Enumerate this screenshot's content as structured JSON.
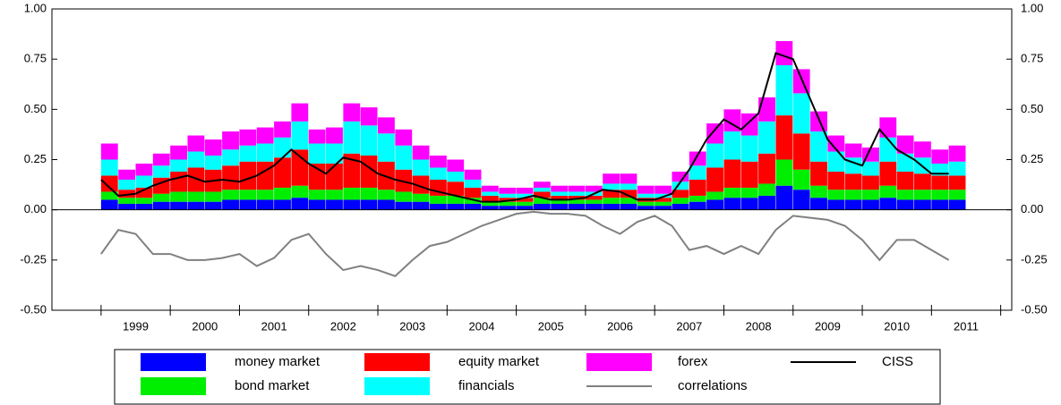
{
  "chart_data": {
    "type": "bar",
    "stacked": true,
    "legend": "bottom",
    "xlim": [
      1998.29,
      2012.16
    ],
    "ylim": [
      -0.5,
      1.0
    ],
    "yticks": [
      {
        "value": 1.0,
        "label": "1.00"
      },
      {
        "value": 0.75,
        "label": "0.75"
      },
      {
        "value": 0.5,
        "label": "0.50"
      },
      {
        "value": 0.25,
        "label": "0.25"
      },
      {
        "value": 0.0,
        "label": "0.00"
      },
      {
        "value": -0.25,
        "label": "-0.25"
      },
      {
        "value": -0.5,
        "label": "-0.50"
      }
    ],
    "xtick_marks": [
      1999,
      2000,
      2001,
      2002,
      2003,
      2004,
      2005,
      2006,
      2007,
      2008,
      2009,
      2010,
      2011,
      2012
    ],
    "xticks": [
      {
        "value": 1999.5,
        "label": "1999"
      },
      {
        "value": 2000.5,
        "label": "2000"
      },
      {
        "value": 2001.5,
        "label": "2001"
      },
      {
        "value": 2002.5,
        "label": "2002"
      },
      {
        "value": 2003.5,
        "label": "2003"
      },
      {
        "value": 2004.5,
        "label": "2004"
      },
      {
        "value": 2005.5,
        "label": "2005"
      },
      {
        "value": 2006.5,
        "label": "2006"
      },
      {
        "value": 2007.5,
        "label": "2007"
      },
      {
        "value": 2008.5,
        "label": "2008"
      },
      {
        "value": 2009.5,
        "label": "2009"
      },
      {
        "value": 2010.5,
        "label": "2010"
      },
      {
        "value": 2011.5,
        "label": "2011"
      }
    ],
    "x": [
      1999.0,
      1999.25,
      1999.5,
      1999.75,
      2000.0,
      2000.25,
      2000.5,
      2000.75,
      2001.0,
      2001.25,
      2001.5,
      2001.75,
      2002.0,
      2002.25,
      2002.5,
      2002.75,
      2003.0,
      2003.25,
      2003.5,
      2003.75,
      2004.0,
      2004.25,
      2004.5,
      2004.75,
      2005.0,
      2005.25,
      2005.5,
      2005.75,
      2006.0,
      2006.25,
      2006.5,
      2006.75,
      2007.0,
      2007.25,
      2007.5,
      2007.75,
      2008.0,
      2008.25,
      2008.5,
      2008.75,
      2009.0,
      2009.25,
      2009.5,
      2009.75,
      2010.0,
      2010.25,
      2010.5,
      2010.75,
      2011.0,
      2011.25
    ],
    "series": [
      {
        "name": "money market",
        "type": "bar",
        "color": "#0000ff",
        "values": [
          0.05,
          0.03,
          0.03,
          0.04,
          0.04,
          0.04,
          0.04,
          0.05,
          0.05,
          0.05,
          0.05,
          0.06,
          0.05,
          0.05,
          0.05,
          0.05,
          0.05,
          0.04,
          0.04,
          0.03,
          0.03,
          0.03,
          0.02,
          0.02,
          0.02,
          0.03,
          0.03,
          0.03,
          0.03,
          0.03,
          0.03,
          0.02,
          0.02,
          0.03,
          0.04,
          0.05,
          0.06,
          0.06,
          0.07,
          0.12,
          0.1,
          0.06,
          0.05,
          0.05,
          0.05,
          0.06,
          0.05,
          0.05,
          0.05,
          0.05
        ]
      },
      {
        "name": "bond market",
        "type": "bar",
        "color": "#00ee00",
        "values": [
          0.04,
          0.03,
          0.03,
          0.04,
          0.05,
          0.05,
          0.05,
          0.05,
          0.05,
          0.05,
          0.06,
          0.06,
          0.05,
          0.05,
          0.06,
          0.06,
          0.05,
          0.05,
          0.04,
          0.04,
          0.04,
          0.03,
          0.02,
          0.02,
          0.02,
          0.03,
          0.02,
          0.02,
          0.02,
          0.03,
          0.03,
          0.02,
          0.02,
          0.03,
          0.03,
          0.04,
          0.05,
          0.05,
          0.06,
          0.13,
          0.1,
          0.06,
          0.05,
          0.05,
          0.05,
          0.06,
          0.05,
          0.05,
          0.05,
          0.05
        ]
      },
      {
        "name": "equity market",
        "type": "bar",
        "color": "#ff0000",
        "values": [
          0.08,
          0.04,
          0.05,
          0.08,
          0.1,
          0.12,
          0.11,
          0.12,
          0.14,
          0.14,
          0.15,
          0.18,
          0.13,
          0.13,
          0.17,
          0.16,
          0.14,
          0.11,
          0.09,
          0.08,
          0.07,
          0.05,
          0.03,
          0.02,
          0.02,
          0.03,
          0.02,
          0.02,
          0.02,
          0.04,
          0.04,
          0.02,
          0.02,
          0.04,
          0.08,
          0.12,
          0.14,
          0.13,
          0.15,
          0.22,
          0.18,
          0.12,
          0.09,
          0.08,
          0.07,
          0.12,
          0.09,
          0.08,
          0.07,
          0.07
        ]
      },
      {
        "name": "financials",
        "type": "bar",
        "color": "#00ffff",
        "values": [
          0.08,
          0.05,
          0.06,
          0.06,
          0.06,
          0.08,
          0.07,
          0.08,
          0.08,
          0.09,
          0.1,
          0.14,
          0.1,
          0.1,
          0.16,
          0.15,
          0.14,
          0.12,
          0.08,
          0.06,
          0.05,
          0.04,
          0.02,
          0.02,
          0.02,
          0.02,
          0.02,
          0.02,
          0.02,
          0.03,
          0.03,
          0.02,
          0.02,
          0.04,
          0.07,
          0.12,
          0.14,
          0.13,
          0.16,
          0.25,
          0.2,
          0.15,
          0.1,
          0.08,
          0.07,
          0.12,
          0.09,
          0.08,
          0.06,
          0.07
        ]
      },
      {
        "name": "forex",
        "type": "bar",
        "color": "#ff00ff",
        "values": [
          0.08,
          0.05,
          0.06,
          0.06,
          0.07,
          0.08,
          0.08,
          0.09,
          0.08,
          0.08,
          0.08,
          0.09,
          0.07,
          0.08,
          0.09,
          0.09,
          0.08,
          0.08,
          0.07,
          0.06,
          0.06,
          0.05,
          0.03,
          0.03,
          0.03,
          0.03,
          0.03,
          0.03,
          0.03,
          0.05,
          0.05,
          0.04,
          0.04,
          0.05,
          0.07,
          0.1,
          0.11,
          0.11,
          0.12,
          0.12,
          0.12,
          0.1,
          0.08,
          0.07,
          0.07,
          0.1,
          0.09,
          0.08,
          0.07,
          0.08
        ]
      },
      {
        "name": "CISS",
        "type": "line",
        "color": "#000000",
        "values": [
          0.15,
          0.07,
          0.08,
          0.12,
          0.15,
          0.17,
          0.14,
          0.15,
          0.14,
          0.17,
          0.22,
          0.3,
          0.23,
          0.18,
          0.26,
          0.24,
          0.18,
          0.15,
          0.13,
          0.1,
          0.08,
          0.06,
          0.04,
          0.04,
          0.05,
          0.07,
          0.05,
          0.05,
          0.06,
          0.1,
          0.09,
          0.05,
          0.05,
          0.08,
          0.2,
          0.35,
          0.45,
          0.4,
          0.48,
          0.78,
          0.75,
          0.55,
          0.35,
          0.25,
          0.22,
          0.4,
          0.3,
          0.25,
          0.18,
          0.18
        ]
      },
      {
        "name": "correlations",
        "type": "line",
        "color": "#808080",
        "values": [
          -0.22,
          -0.1,
          -0.12,
          -0.22,
          -0.22,
          -0.25,
          -0.25,
          -0.24,
          -0.22,
          -0.28,
          -0.24,
          -0.15,
          -0.12,
          -0.22,
          -0.3,
          -0.28,
          -0.3,
          -0.33,
          -0.25,
          -0.18,
          -0.16,
          -0.12,
          -0.08,
          -0.05,
          -0.02,
          -0.01,
          -0.02,
          -0.02,
          -0.03,
          -0.08,
          -0.12,
          -0.06,
          -0.03,
          -0.08,
          -0.2,
          -0.18,
          -0.22,
          -0.18,
          -0.22,
          -0.1,
          -0.03,
          -0.04,
          -0.05,
          -0.08,
          -0.15,
          -0.25,
          -0.15,
          -0.15,
          -0.2,
          -0.25
        ]
      }
    ]
  }
}
